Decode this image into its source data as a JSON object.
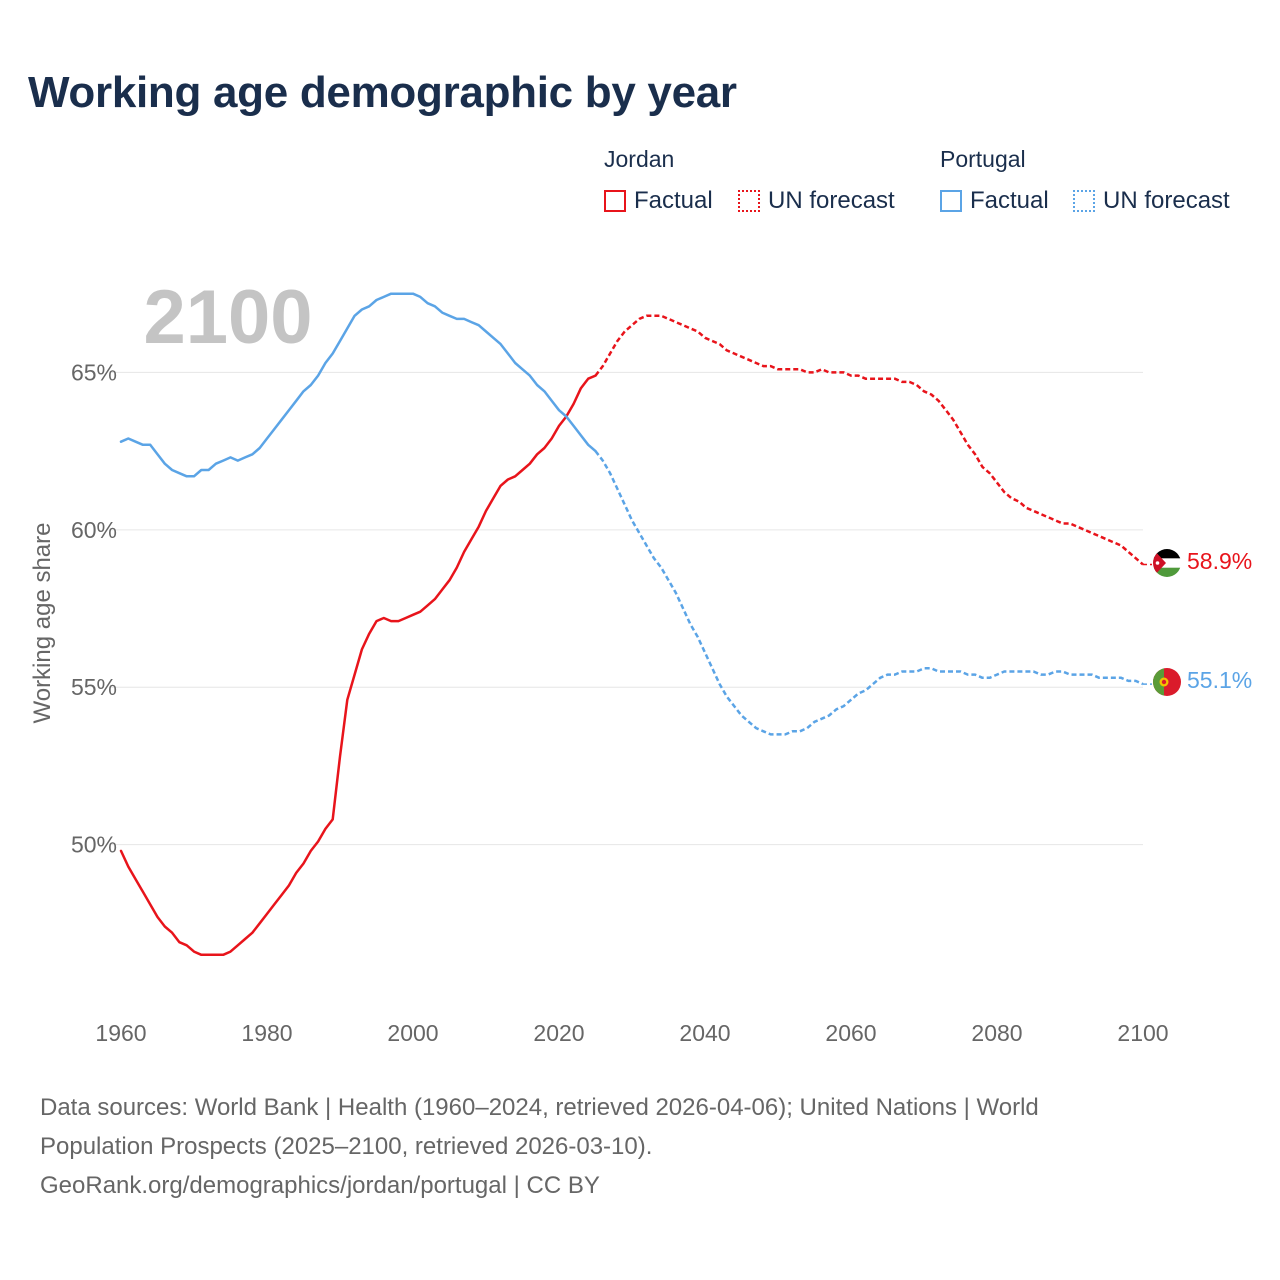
{
  "title": "Working age demographic by year",
  "legend": {
    "groups": [
      {
        "country": "Jordan",
        "factual_label": "Factual",
        "forecast_label": "UN forecast",
        "color": "#e8141b"
      },
      {
        "country": "Portugal",
        "factual_label": "Factual",
        "forecast_label": "UN forecast",
        "color": "#5ba4e6"
      }
    ]
  },
  "year_watermark": "2100",
  "footer": {
    "line1": "Data sources: World Bank | Health (1960–2024, retrieved 2026-04-06); United Nations | World",
    "line2": "Population Prospects (2025–2100, retrieved 2026-03-10).",
    "line3": "GeoRank.org/demographics/jordan/portugal | CC BY"
  },
  "chart_data": {
    "type": "line",
    "title": "Working age demographic by year",
    "xlabel": "",
    "ylabel": "Working age share",
    "xlim": [
      1960,
      2100
    ],
    "ylim": [
      45.0,
      68.0
    ],
    "x_ticks": [
      1960,
      1980,
      2000,
      2020,
      2040,
      2060,
      2080,
      2100
    ],
    "y_ticks": [
      50,
      55,
      60,
      65
    ],
    "y_tick_labels": [
      "50%",
      "55%",
      "60%",
      "65%"
    ],
    "grid": true,
    "forecast_start": 2025,
    "series": [
      {
        "name": "Jordan",
        "color": "#e8141b",
        "end_label": "58.9%",
        "flag_icon": "jordan-flag-icon",
        "points": [
          [
            1960,
            49.8
          ],
          [
            1961,
            49.3
          ],
          [
            1962,
            48.9
          ],
          [
            1963,
            48.5
          ],
          [
            1964,
            48.1
          ],
          [
            1965,
            47.7
          ],
          [
            1966,
            47.4
          ],
          [
            1967,
            47.2
          ],
          [
            1968,
            46.9
          ],
          [
            1969,
            46.8
          ],
          [
            1970,
            46.6
          ],
          [
            1971,
            46.5
          ],
          [
            1972,
            46.5
          ],
          [
            1973,
            46.5
          ],
          [
            1974,
            46.5
          ],
          [
            1975,
            46.6
          ],
          [
            1976,
            46.8
          ],
          [
            1977,
            47.0
          ],
          [
            1978,
            47.2
          ],
          [
            1979,
            47.5
          ],
          [
            1980,
            47.8
          ],
          [
            1981,
            48.1
          ],
          [
            1982,
            48.4
          ],
          [
            1983,
            48.7
          ],
          [
            1984,
            49.1
          ],
          [
            1985,
            49.4
          ],
          [
            1986,
            49.8
          ],
          [
            1987,
            50.1
          ],
          [
            1988,
            50.5
          ],
          [
            1989,
            50.8
          ],
          [
            1990,
            52.8
          ],
          [
            1991,
            54.6
          ],
          [
            1992,
            55.4
          ],
          [
            1993,
            56.2
          ],
          [
            1994,
            56.7
          ],
          [
            1995,
            57.1
          ],
          [
            1996,
            57.2
          ],
          [
            1997,
            57.1
          ],
          [
            1998,
            57.1
          ],
          [
            1999,
            57.2
          ],
          [
            2000,
            57.3
          ],
          [
            2001,
            57.4
          ],
          [
            2002,
            57.6
          ],
          [
            2003,
            57.8
          ],
          [
            2004,
            58.1
          ],
          [
            2005,
            58.4
          ],
          [
            2006,
            58.8
          ],
          [
            2007,
            59.3
          ],
          [
            2008,
            59.7
          ],
          [
            2009,
            60.1
          ],
          [
            2010,
            60.6
          ],
          [
            2011,
            61.0
          ],
          [
            2012,
            61.4
          ],
          [
            2013,
            61.6
          ],
          [
            2014,
            61.7
          ],
          [
            2015,
            61.9
          ],
          [
            2016,
            62.1
          ],
          [
            2017,
            62.4
          ],
          [
            2018,
            62.6
          ],
          [
            2019,
            62.9
          ],
          [
            2020,
            63.3
          ],
          [
            2021,
            63.6
          ],
          [
            2022,
            64.0
          ],
          [
            2023,
            64.5
          ],
          [
            2024,
            64.8
          ],
          [
            2025,
            64.9
          ],
          [
            2026,
            65.2
          ],
          [
            2027,
            65.6
          ],
          [
            2028,
            66.0
          ],
          [
            2029,
            66.3
          ],
          [
            2030,
            66.5
          ],
          [
            2031,
            66.7
          ],
          [
            2032,
            66.8
          ],
          [
            2033,
            66.8
          ],
          [
            2034,
            66.8
          ],
          [
            2035,
            66.7
          ],
          [
            2036,
            66.6
          ],
          [
            2037,
            66.5
          ],
          [
            2038,
            66.4
          ],
          [
            2039,
            66.3
          ],
          [
            2040,
            66.1
          ],
          [
            2041,
            66.0
          ],
          [
            2042,
            65.9
          ],
          [
            2043,
            65.7
          ],
          [
            2044,
            65.6
          ],
          [
            2045,
            65.5
          ],
          [
            2046,
            65.4
          ],
          [
            2047,
            65.3
          ],
          [
            2048,
            65.2
          ],
          [
            2049,
            65.2
          ],
          [
            2050,
            65.1
          ],
          [
            2051,
            65.1
          ],
          [
            2052,
            65.1
          ],
          [
            2053,
            65.1
          ],
          [
            2054,
            65.0
          ],
          [
            2055,
            65.0
          ],
          [
            2056,
            65.1
          ],
          [
            2057,
            65.0
          ],
          [
            2058,
            65.0
          ],
          [
            2059,
            65.0
          ],
          [
            2060,
            64.9
          ],
          [
            2061,
            64.9
          ],
          [
            2062,
            64.8
          ],
          [
            2063,
            64.8
          ],
          [
            2064,
            64.8
          ],
          [
            2065,
            64.8
          ],
          [
            2066,
            64.8
          ],
          [
            2067,
            64.7
          ],
          [
            2068,
            64.7
          ],
          [
            2069,
            64.6
          ],
          [
            2070,
            64.4
          ],
          [
            2071,
            64.3
          ],
          [
            2072,
            64.1
          ],
          [
            2073,
            63.8
          ],
          [
            2074,
            63.5
          ],
          [
            2075,
            63.1
          ],
          [
            2076,
            62.7
          ],
          [
            2077,
            62.4
          ],
          [
            2078,
            62.0
          ],
          [
            2079,
            61.8
          ],
          [
            2080,
            61.5
          ],
          [
            2081,
            61.2
          ],
          [
            2082,
            61.0
          ],
          [
            2083,
            60.9
          ],
          [
            2084,
            60.7
          ],
          [
            2085,
            60.6
          ],
          [
            2086,
            60.5
          ],
          [
            2087,
            60.4
          ],
          [
            2088,
            60.3
          ],
          [
            2089,
            60.2
          ],
          [
            2090,
            60.2
          ],
          [
            2091,
            60.1
          ],
          [
            2092,
            60.0
          ],
          [
            2093,
            59.9
          ],
          [
            2094,
            59.8
          ],
          [
            2095,
            59.7
          ],
          [
            2096,
            59.6
          ],
          [
            2097,
            59.5
          ],
          [
            2098,
            59.3
          ],
          [
            2099,
            59.1
          ],
          [
            2100,
            58.9
          ]
        ]
      },
      {
        "name": "Portugal",
        "color": "#5ba4e6",
        "end_label": "55.1%",
        "flag_icon": "portugal-flag-icon",
        "points": [
          [
            1960,
            62.8
          ],
          [
            1961,
            62.9
          ],
          [
            1962,
            62.8
          ],
          [
            1963,
            62.7
          ],
          [
            1964,
            62.7
          ],
          [
            1965,
            62.4
          ],
          [
            1966,
            62.1
          ],
          [
            1967,
            61.9
          ],
          [
            1968,
            61.8
          ],
          [
            1969,
            61.7
          ],
          [
            1970,
            61.7
          ],
          [
            1971,
            61.9
          ],
          [
            1972,
            61.9
          ],
          [
            1973,
            62.1
          ],
          [
            1974,
            62.2
          ],
          [
            1975,
            62.3
          ],
          [
            1976,
            62.2
          ],
          [
            1977,
            62.3
          ],
          [
            1978,
            62.4
          ],
          [
            1979,
            62.6
          ],
          [
            1980,
            62.9
          ],
          [
            1981,
            63.2
          ],
          [
            1982,
            63.5
          ],
          [
            1983,
            63.8
          ],
          [
            1984,
            64.1
          ],
          [
            1985,
            64.4
          ],
          [
            1986,
            64.6
          ],
          [
            1987,
            64.9
          ],
          [
            1988,
            65.3
          ],
          [
            1989,
            65.6
          ],
          [
            1990,
            66.0
          ],
          [
            1991,
            66.4
          ],
          [
            1992,
            66.8
          ],
          [
            1993,
            67.0
          ],
          [
            1994,
            67.1
          ],
          [
            1995,
            67.3
          ],
          [
            1996,
            67.4
          ],
          [
            1997,
            67.5
          ],
          [
            1998,
            67.5
          ],
          [
            1999,
            67.5
          ],
          [
            2000,
            67.5
          ],
          [
            2001,
            67.4
          ],
          [
            2002,
            67.2
          ],
          [
            2003,
            67.1
          ],
          [
            2004,
            66.9
          ],
          [
            2005,
            66.8
          ],
          [
            2006,
            66.7
          ],
          [
            2007,
            66.7
          ],
          [
            2008,
            66.6
          ],
          [
            2009,
            66.5
          ],
          [
            2010,
            66.3
          ],
          [
            2011,
            66.1
          ],
          [
            2012,
            65.9
          ],
          [
            2013,
            65.6
          ],
          [
            2014,
            65.3
          ],
          [
            2015,
            65.1
          ],
          [
            2016,
            64.9
          ],
          [
            2017,
            64.6
          ],
          [
            2018,
            64.4
          ],
          [
            2019,
            64.1
          ],
          [
            2020,
            63.8
          ],
          [
            2021,
            63.6
          ],
          [
            2022,
            63.3
          ],
          [
            2023,
            63.0
          ],
          [
            2024,
            62.7
          ],
          [
            2025,
            62.5
          ],
          [
            2026,
            62.2
          ],
          [
            2027,
            61.8
          ],
          [
            2028,
            61.3
          ],
          [
            2029,
            60.8
          ],
          [
            2030,
            60.3
          ],
          [
            2031,
            59.9
          ],
          [
            2032,
            59.5
          ],
          [
            2033,
            59.1
          ],
          [
            2034,
            58.8
          ],
          [
            2035,
            58.4
          ],
          [
            2036,
            58.0
          ],
          [
            2037,
            57.5
          ],
          [
            2038,
            57.0
          ],
          [
            2039,
            56.6
          ],
          [
            2040,
            56.1
          ],
          [
            2041,
            55.6
          ],
          [
            2042,
            55.1
          ],
          [
            2043,
            54.7
          ],
          [
            2044,
            54.4
          ],
          [
            2045,
            54.1
          ],
          [
            2046,
            53.9
          ],
          [
            2047,
            53.7
          ],
          [
            2048,
            53.6
          ],
          [
            2049,
            53.5
          ],
          [
            2050,
            53.5
          ],
          [
            2051,
            53.5
          ],
          [
            2052,
            53.6
          ],
          [
            2053,
            53.6
          ],
          [
            2054,
            53.7
          ],
          [
            2055,
            53.9
          ],
          [
            2056,
            54.0
          ],
          [
            2057,
            54.1
          ],
          [
            2058,
            54.3
          ],
          [
            2059,
            54.4
          ],
          [
            2060,
            54.6
          ],
          [
            2061,
            54.8
          ],
          [
            2062,
            54.9
          ],
          [
            2063,
            55.1
          ],
          [
            2064,
            55.3
          ],
          [
            2065,
            55.4
          ],
          [
            2066,
            55.4
          ],
          [
            2067,
            55.5
          ],
          [
            2068,
            55.5
          ],
          [
            2069,
            55.5
          ],
          [
            2070,
            55.6
          ],
          [
            2071,
            55.6
          ],
          [
            2072,
            55.5
          ],
          [
            2073,
            55.5
          ],
          [
            2074,
            55.5
          ],
          [
            2075,
            55.5
          ],
          [
            2076,
            55.4
          ],
          [
            2077,
            55.4
          ],
          [
            2078,
            55.3
          ],
          [
            2079,
            55.3
          ],
          [
            2080,
            55.4
          ],
          [
            2081,
            55.5
          ],
          [
            2082,
            55.5
          ],
          [
            2083,
            55.5
          ],
          [
            2084,
            55.5
          ],
          [
            2085,
            55.5
          ],
          [
            2086,
            55.4
          ],
          [
            2087,
            55.4
          ],
          [
            2088,
            55.5
          ],
          [
            2089,
            55.5
          ],
          [
            2090,
            55.4
          ],
          [
            2091,
            55.4
          ],
          [
            2092,
            55.4
          ],
          [
            2093,
            55.4
          ],
          [
            2094,
            55.3
          ],
          [
            2095,
            55.3
          ],
          [
            2096,
            55.3
          ],
          [
            2097,
            55.3
          ],
          [
            2098,
            55.2
          ],
          [
            2099,
            55.2
          ],
          [
            2100,
            55.1
          ]
        ]
      }
    ]
  }
}
